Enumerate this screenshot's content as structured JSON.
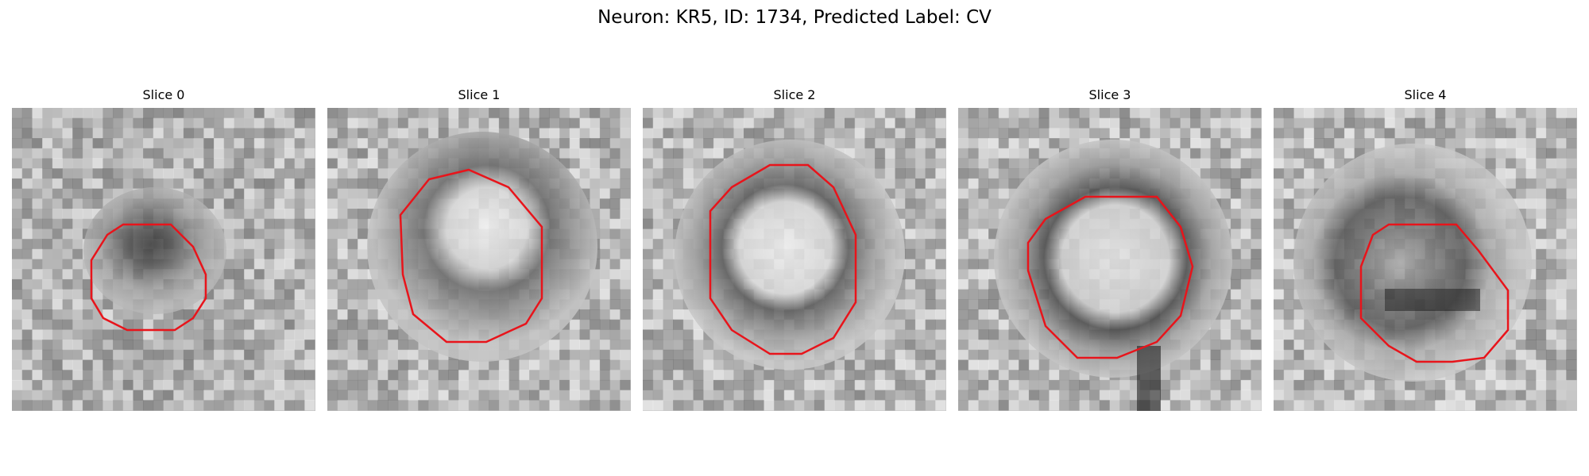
{
  "figure": {
    "title": "Neuron: KR5, ID: 1734, Predicted Label: CV"
  },
  "colors": {
    "contour": "#e8141b"
  },
  "panels": [
    {
      "label": "Slice 0"
    },
    {
      "label": "Slice 1"
    },
    {
      "label": "Slice 2"
    },
    {
      "label": "Slice 3"
    },
    {
      "label": "Slice 4"
    }
  ]
}
